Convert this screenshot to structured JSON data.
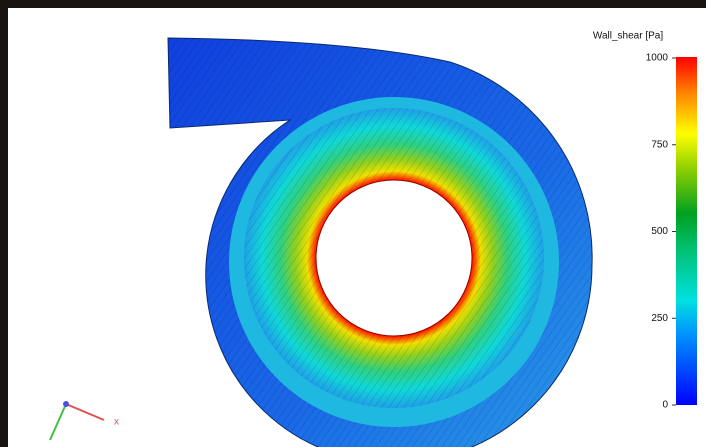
{
  "colorbar": {
    "title": "Wall_shear [Pa]",
    "range": [
      0,
      1000
    ],
    "ticks": [
      0,
      250,
      500,
      750,
      1000
    ]
  },
  "axes_triad": {
    "x_label": "x"
  }
}
